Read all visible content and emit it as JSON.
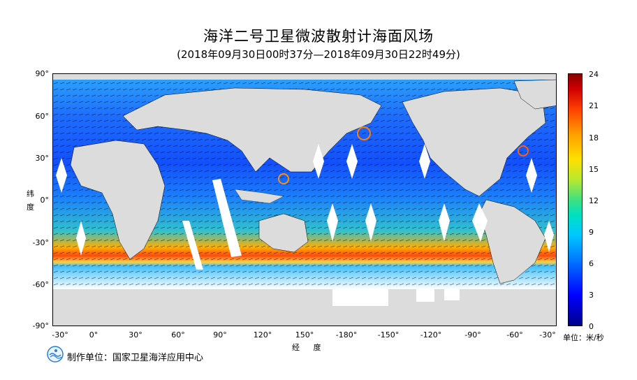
{
  "title": "海洋二号卫星微波散射计海面风场",
  "subtitle": "(2018年09月30日00时37分—2018年09月30日22时49分)",
  "axes": {
    "ylabel_chars": [
      "纬",
      "度"
    ],
    "xlabel": "经 度",
    "y_ticks": [
      "90°",
      "60°",
      "30°",
      "0°",
      "-30°",
      "-60°",
      "-90°"
    ],
    "x_ticks": [
      "-30°",
      "0°",
      "30°",
      "60°",
      "90°",
      "120°",
      "150°",
      "-180°",
      "-150°",
      "-120°",
      "-90°",
      "-60°",
      "-30°"
    ]
  },
  "colorbar": {
    "ticks": [
      "24",
      "21",
      "18",
      "15",
      "12",
      "9",
      "6",
      "3",
      "0"
    ],
    "unit": "单位：米/秒",
    "range": [
      0,
      24
    ]
  },
  "footer": "制作单位：国家卫星海洋应用中心",
  "colors": {
    "ocean_base": "#1e64ff",
    "land": "#dcdcdc",
    "strong_wind": "#ff4000"
  }
}
